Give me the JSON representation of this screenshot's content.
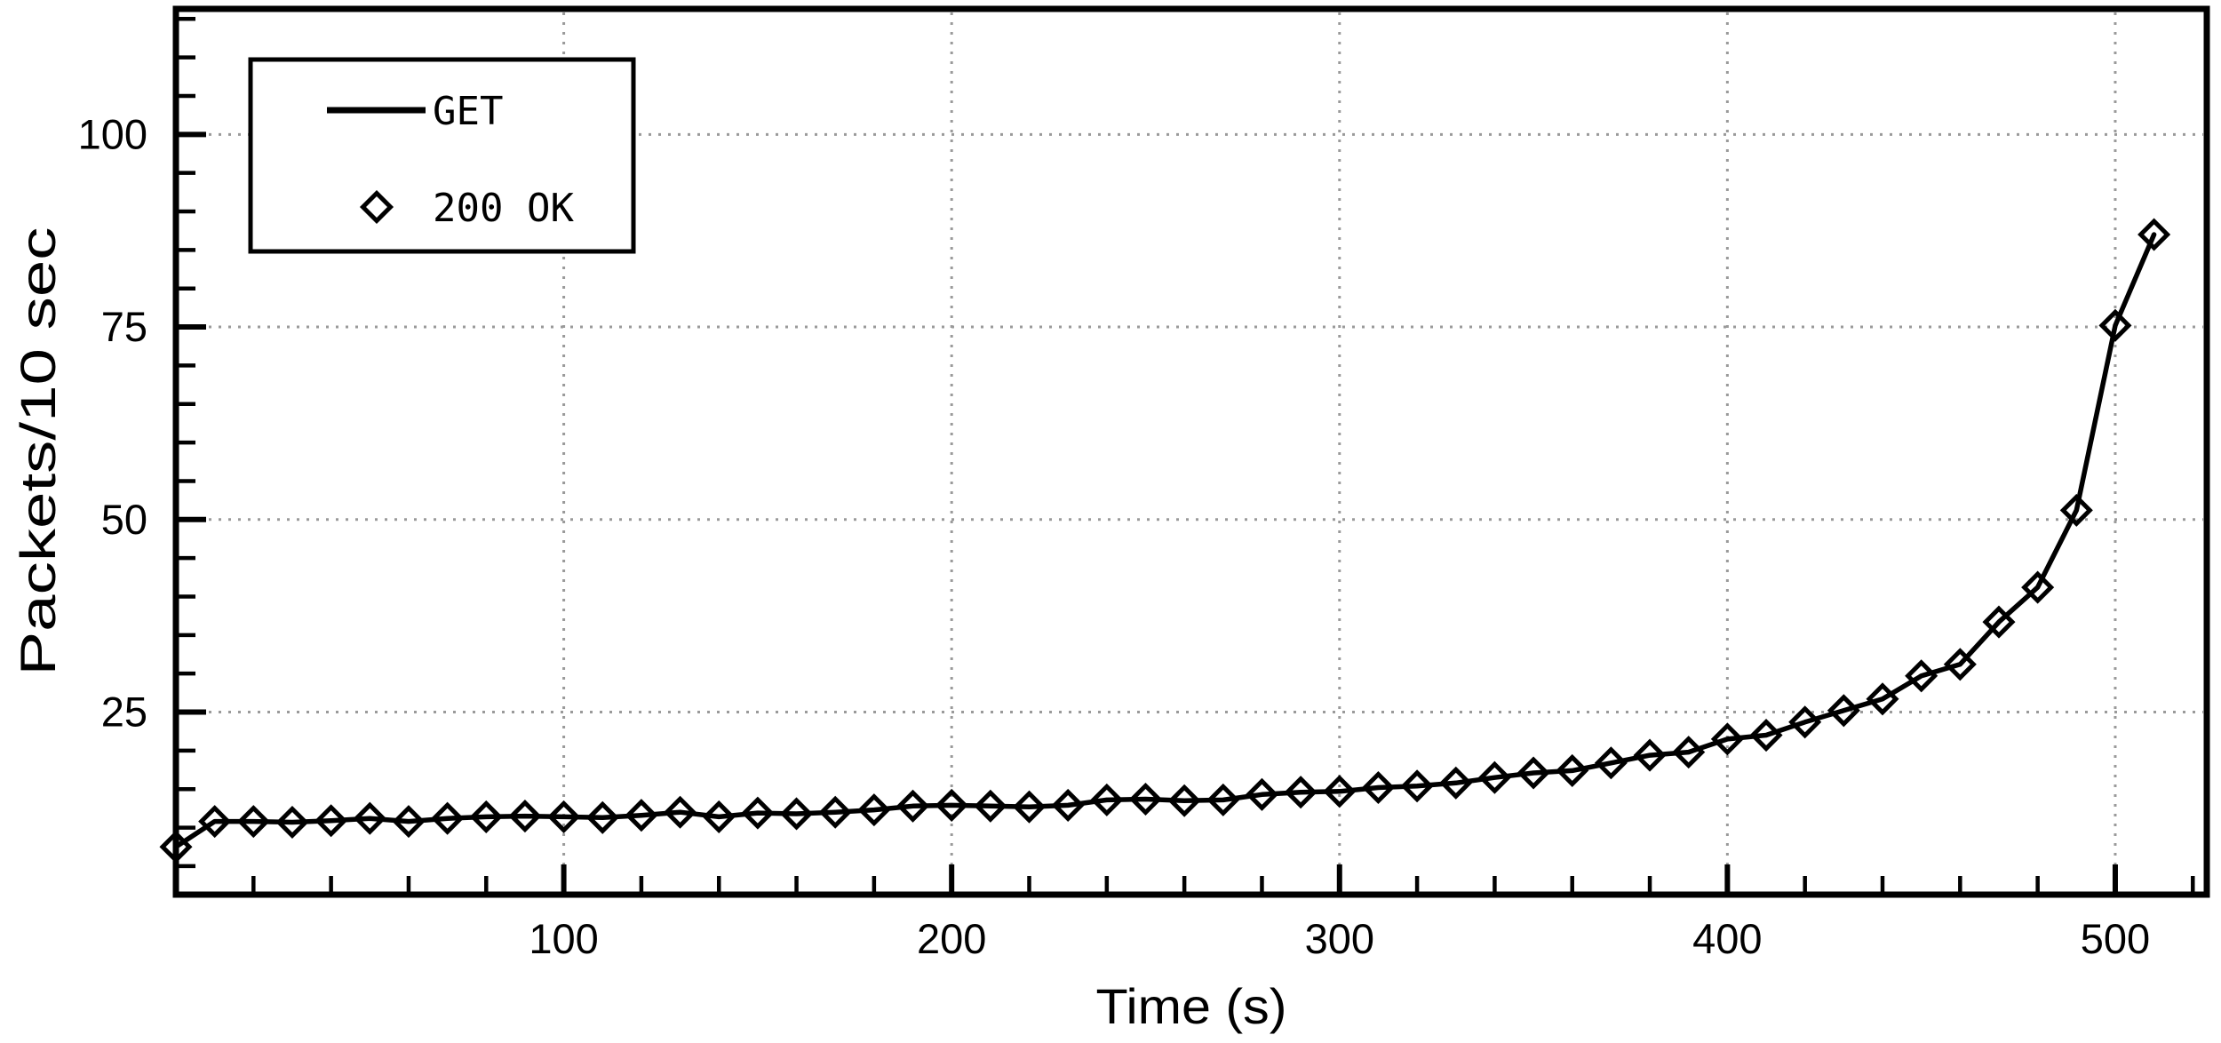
{
  "chart_data": {
    "type": "line",
    "xlabel": "Time (s)",
    "ylabel": "Packets/10 sec",
    "x_axis": {
      "range": [
        0,
        523.6
      ],
      "major_ticks": [
        100,
        200,
        300,
        400,
        500
      ],
      "minor_tick_step": 20
    },
    "y_axis": {
      "range": [
        1.3,
        116.3
      ],
      "major_ticks": [
        25,
        50,
        75,
        100
      ],
      "minor_tick_step": 5
    },
    "grid": {
      "style": "dotted",
      "color": "#9a9a9a",
      "at": "major-ticks-only"
    },
    "legend": {
      "position": "top-left",
      "entries": [
        {
          "label": "GET",
          "sample": "solid-line"
        },
        {
          "label": "200 OK",
          "sample": "open-diamond"
        }
      ]
    },
    "series": [
      {
        "name": "GET",
        "draw": "line"
      },
      {
        "name": "200 OK",
        "draw": "open-diamond-markers"
      }
    ],
    "points_x": [
      0,
      10,
      20,
      30,
      40,
      50,
      60,
      70,
      80,
      90,
      100,
      110,
      120,
      130,
      140,
      150,
      160,
      170,
      180,
      190,
      200,
      210,
      220,
      230,
      240,
      250,
      260,
      270,
      280,
      290,
      300,
      310,
      320,
      330,
      340,
      350,
      360,
      370,
      380,
      390,
      400,
      410,
      420,
      430,
      440,
      450,
      460,
      470,
      480,
      490,
      500,
      510
    ],
    "points_y": [
      7.5,
      10.8,
      10.8,
      10.7,
      10.9,
      11.2,
      10.8,
      11.2,
      11.4,
      11.5,
      11.4,
      11.3,
      11.6,
      12.0,
      11.4,
      11.9,
      11.8,
      12.0,
      12.3,
      12.8,
      12.9,
      12.8,
      12.7,
      12.9,
      13.6,
      13.7,
      13.5,
      13.6,
      14.3,
      14.6,
      14.7,
      15.2,
      15.4,
      15.8,
      16.5,
      17.1,
      17.4,
      18.4,
      19.4,
      19.8,
      21.5,
      22.0,
      23.7,
      25.2,
      26.7,
      29.7,
      31.2,
      36.7,
      41.2,
      51.2,
      75.2,
      87.0
    ]
  },
  "colors": {
    "background": "#ffffff",
    "frame": "#000000",
    "data": "#000000",
    "grid": "#9a9a9a",
    "text": "#000000"
  }
}
